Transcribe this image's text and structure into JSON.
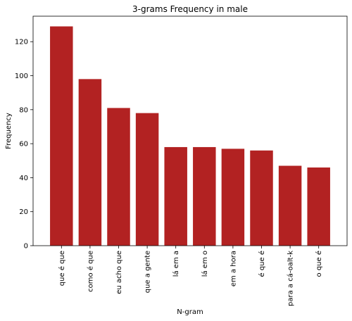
{
  "chart_data": {
    "type": "bar",
    "title": "3-grams Frequency in male",
    "xlabel": "N-gram",
    "ylabel": "Frequency",
    "categories": [
      "que é que",
      "como é que",
      "eu acho que",
      "que a gente",
      "lá em a",
      "lá em o",
      "em a hora",
      "é que é",
      "para a cá-oalt-k",
      "o que é"
    ],
    "values": [
      129,
      98,
      81,
      78,
      58,
      58,
      57,
      56,
      47,
      46
    ],
    "ylim": [
      0,
      135
    ],
    "yticks": [
      0,
      20,
      40,
      60,
      80,
      100,
      120
    ],
    "grid": false,
    "bar_color": "#b22222"
  }
}
